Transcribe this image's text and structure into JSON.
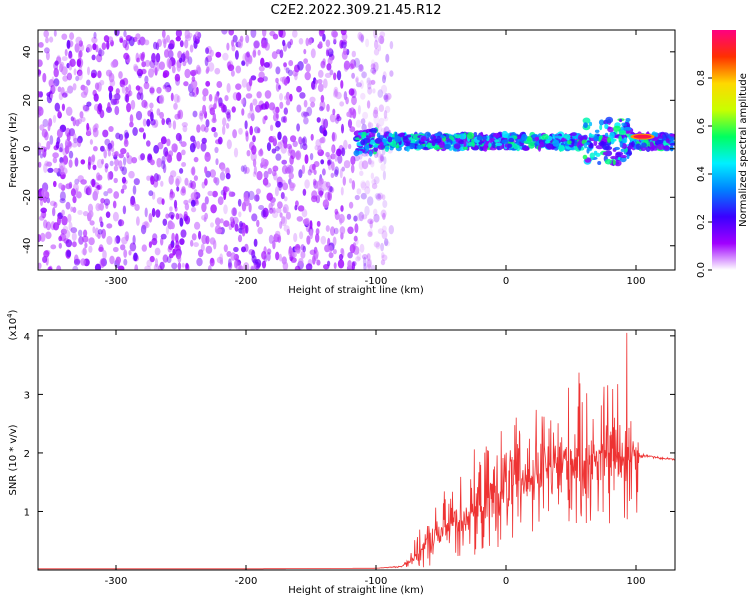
{
  "title": "C2E2.2022.309.21.45.R12",
  "chart_data": [
    {
      "type": "heatmap",
      "xlabel": "Height of straight line (km)",
      "ylabel": "Frequency (Hz)",
      "xlim": [
        -360,
        130
      ],
      "ylim": [
        -50,
        49
      ],
      "xticks": [
        -300,
        -200,
        -100,
        0,
        100
      ],
      "yticks": [
        -40,
        -20,
        0,
        20,
        40
      ],
      "noise_region_x": [
        -360,
        -88
      ],
      "signal_band": {
        "x_range": [
          -115,
          130
        ],
        "center_frequency_hz": 3,
        "strongest_return": {
          "x": 105,
          "y": 5
        }
      },
      "colorbar": {
        "label": "Normalized spectral amplitude",
        "range": [
          0.0,
          1.0
        ],
        "ticks": [
          "0.0",
          "0.2",
          "0.4",
          "0.6",
          "0.8"
        ],
        "colors": [
          "#ffffff",
          "#a000ff",
          "#3a00ff",
          "#0080ff",
          "#00f0ff",
          "#00ff60",
          "#c8ff00",
          "#ffd800",
          "#ff3000",
          "#ff0080"
        ]
      }
    },
    {
      "type": "line",
      "xlabel": "Height of straight line (km)",
      "ylabel": "SNR (10 * v/v)",
      "y_scale_label": "(x10",
      "y_scale_exponent": "4",
      "y_scale_close": ")",
      "xlim": [
        -360,
        130
      ],
      "ylim": [
        0,
        4.1
      ],
      "xticks": [
        -300,
        -200,
        -100,
        0,
        100
      ],
      "yticks": [
        1,
        2,
        3,
        4
      ],
      "color": "#ee3333",
      "series": [
        {
          "x": [
            -360,
            -200,
            -100,
            -80,
            -70,
            -60,
            -50,
            -40,
            -30,
            -20,
            -10,
            0,
            10,
            20,
            30,
            40,
            50,
            60,
            70,
            80,
            90,
            100,
            103,
            110,
            120,
            130
          ],
          "y": [
            0.02,
            0.02,
            0.03,
            0.06,
            0.25,
            0.45,
            0.65,
            0.85,
            0.95,
            1.1,
            1.25,
            1.4,
            1.5,
            1.6,
            1.7,
            1.8,
            1.85,
            1.9,
            1.95,
            2.0,
            1.95,
            2.0,
            1.95,
            1.95,
            1.9,
            1.9
          ],
          "spread": [
            0,
            0,
            0,
            0.02,
            0.3,
            0.5,
            0.7,
            0.9,
            1.0,
            1.1,
            1.2,
            1.3,
            1.35,
            1.4,
            1.45,
            1.5,
            1.55,
            1.6,
            1.65,
            1.7,
            1.7,
            1.5,
            0.05,
            0.03,
            0.03,
            0.03
          ],
          "peak": {
            "x": 93,
            "y": 4.05
          }
        }
      ]
    }
  ]
}
